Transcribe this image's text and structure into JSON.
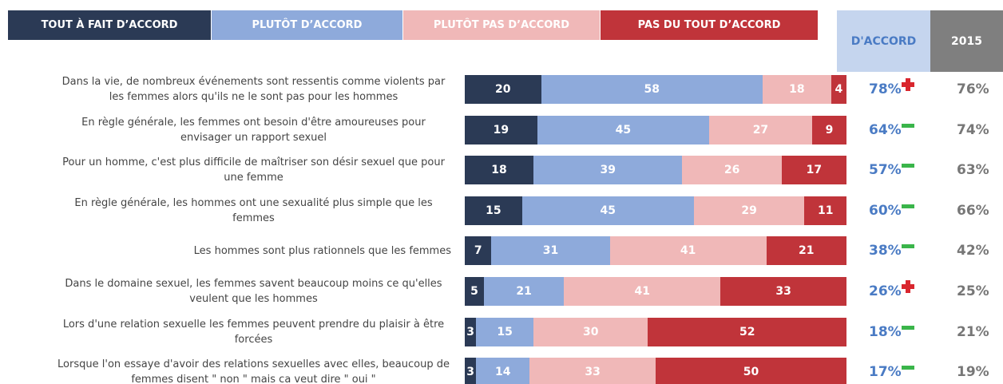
{
  "chart_data": {
    "type": "bar",
    "orientation": "horizontal",
    "stacked": true,
    "xlim": [
      0,
      100
    ],
    "categories": [
      "Dans la vie, de nombreux événements sont ressentis comme violents par les femmes alors qu'ils ne le sont pas pour les hommes",
      "En règle générale, les femmes ont besoin d'être amoureuses pour envisager un rapport sexuel",
      "Pour un homme, c'est plus difficile de maîtriser son désir sexuel que pour une femme",
      "En règle générale, les hommes ont une sexualité plus simple que les femmes",
      "Les hommes sont plus rationnels que les femmes",
      "Dans le domaine sexuel, les femmes savent beaucoup moins ce qu'elles veulent que les hommes",
      "Lors d'une relation sexuelle les femmes peuvent prendre du plaisir à être forcées",
      "Lorsque l'on essaye d'avoir des relations sexuelles avec elles, beaucoup de femmes disent \" non \" mais ca veut dire \" oui \""
    ],
    "series": [
      {
        "name": "TOUT À FAIT D’ACCORD",
        "color": "#2b3a55",
        "values": [
          20,
          19,
          18,
          15,
          7,
          5,
          3,
          3
        ]
      },
      {
        "name": "PLUTÔT D’ACCORD",
        "color": "#8eaadb",
        "values": [
          58,
          45,
          39,
          45,
          31,
          21,
          15,
          14
        ]
      },
      {
        "name": "PLUTÔT PAS D’ACCORD",
        "color": "#f0b8b8",
        "values": [
          18,
          27,
          26,
          29,
          41,
          41,
          30,
          33
        ]
      },
      {
        "name": "PAS DU TOUT D’ACCORD",
        "color": "#c0343a",
        "values": [
          4,
          9,
          17,
          11,
          21,
          33,
          52,
          50
        ]
      }
    ],
    "agree": {
      "title": "D'ACCORD",
      "values": [
        78,
        64,
        57,
        60,
        38,
        26,
        18,
        17
      ],
      "value_labels": [
        "78%",
        "64%",
        "57%",
        "60%",
        "38%",
        "26%",
        "18%",
        "17%"
      ]
    },
    "previous": {
      "title": "2015",
      "values": [
        76,
        74,
        63,
        66,
        42,
        25,
        21,
        19
      ],
      "value_labels": [
        "76%",
        "74%",
        "63%",
        "66%",
        "42%",
        "25%",
        "21%",
        "19%"
      ]
    }
  }
}
